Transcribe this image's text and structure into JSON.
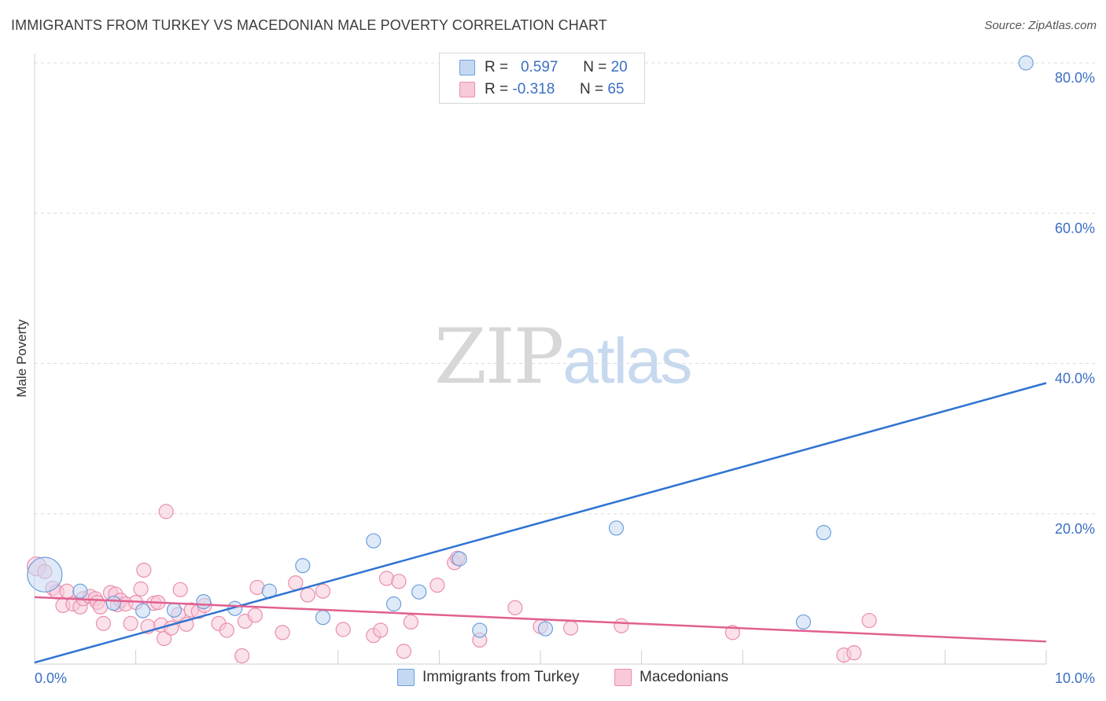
{
  "title": "IMMIGRANTS FROM TURKEY VS MACEDONIAN MALE POVERTY CORRELATION CHART",
  "source": "Source: ZipAtlas.com",
  "watermark": {
    "zip": "ZIP",
    "atlas": "atlas"
  },
  "legend": {
    "r_label": "R =",
    "n_label": "N =",
    "rows": [
      {
        "r": "0.597",
        "n": "20"
      },
      {
        "r": "-0.318",
        "n": "65"
      }
    ]
  },
  "bottom_legend": [
    "Immigrants from Turkey",
    "Macedonians"
  ],
  "colors": {
    "blue_fill": "#c5d8f2",
    "blue_stroke": "#6b9fdc",
    "blue_line": "#2f73d1",
    "pink_fill": "#f8c9d8",
    "pink_stroke": "#e98fae",
    "pink_line": "#e06090",
    "tick_blue": "#3b6fc4",
    "grid": "#dcdcdc"
  },
  "chart_data": {
    "type": "scatter",
    "title": "IMMIGRANTS FROM TURKEY VS MACEDONIAN MALE POVERTY CORRELATION CHART",
    "xlabel": "",
    "ylabel": "Male Poverty",
    "xlim": [
      0,
      10
    ],
    "ylim": [
      0,
      80
    ],
    "x_tick_labels": [
      "0.0%",
      "10.0%"
    ],
    "y_ticks": [
      20,
      40,
      60,
      80
    ],
    "y_tick_labels": [
      "20.0%",
      "40.0%",
      "60.0%",
      "80.0%"
    ],
    "grid": true,
    "series": [
      {
        "name": "Immigrants from Turkey",
        "R": 0.597,
        "N": 20,
        "trend": [
          [
            0,
            0.2
          ],
          [
            10,
            37.4
          ]
        ],
        "points": [
          [
            0.1,
            11.9,
            22
          ],
          [
            0.45,
            9.7,
            9
          ],
          [
            0.78,
            8.1,
            9
          ],
          [
            1.07,
            7.1,
            9
          ],
          [
            1.38,
            7.2,
            9
          ],
          [
            1.67,
            8.3,
            9
          ],
          [
            1.98,
            7.4,
            9
          ],
          [
            2.32,
            9.7,
            9
          ],
          [
            2.65,
            13.1,
            9
          ],
          [
            2.85,
            6.2,
            9
          ],
          [
            3.35,
            16.4,
            9
          ],
          [
            3.55,
            8.0,
            9
          ],
          [
            3.8,
            9.6,
            9
          ],
          [
            4.2,
            14.0,
            9
          ],
          [
            4.4,
            4.5,
            9
          ],
          [
            5.05,
            4.7,
            9
          ],
          [
            5.75,
            18.1,
            9
          ],
          [
            7.6,
            5.6,
            9
          ],
          [
            7.8,
            17.5,
            9
          ],
          [
            9.8,
            80.0,
            9
          ]
        ]
      },
      {
        "name": "Macedonians",
        "R": -0.318,
        "N": 65,
        "trend": [
          [
            0,
            8.9
          ],
          [
            10,
            3.0
          ]
        ],
        "points": [
          [
            0.02,
            13.0,
            12
          ],
          [
            0.1,
            12.3,
            9
          ],
          [
            0.18,
            10.1,
            9
          ],
          [
            0.22,
            9.6,
            9
          ],
          [
            0.28,
            7.8,
            9
          ],
          [
            0.32,
            9.7,
            9
          ],
          [
            0.38,
            8.0,
            9
          ],
          [
            0.45,
            7.6,
            9
          ],
          [
            0.48,
            8.7,
            9
          ],
          [
            0.55,
            9.0,
            9
          ],
          [
            0.6,
            8.7,
            9
          ],
          [
            0.62,
            8.2,
            9
          ],
          [
            0.65,
            7.6,
            9
          ],
          [
            0.68,
            5.4,
            9
          ],
          [
            0.75,
            9.5,
            9
          ],
          [
            0.8,
            9.3,
            9
          ],
          [
            0.82,
            7.9,
            9
          ],
          [
            0.85,
            8.5,
            9
          ],
          [
            0.9,
            8.0,
            9
          ],
          [
            0.95,
            5.4,
            9
          ],
          [
            1.0,
            8.2,
            9
          ],
          [
            1.05,
            10.0,
            9
          ],
          [
            1.08,
            12.5,
            9
          ],
          [
            1.12,
            5.0,
            9
          ],
          [
            1.18,
            8.1,
            9
          ],
          [
            1.22,
            8.2,
            9
          ],
          [
            1.25,
            5.2,
            9
          ],
          [
            1.28,
            3.4,
            9
          ],
          [
            1.3,
            20.3,
            9
          ],
          [
            1.35,
            4.8,
            9
          ],
          [
            1.42,
            6.6,
            9
          ],
          [
            1.44,
            9.9,
            9
          ],
          [
            1.5,
            5.3,
            9
          ],
          [
            1.55,
            7.2,
            9
          ],
          [
            1.62,
            7.0,
            9
          ],
          [
            1.68,
            7.8,
            9
          ],
          [
            1.82,
            5.4,
            9
          ],
          [
            1.9,
            4.5,
            9
          ],
          [
            2.05,
            1.1,
            9
          ],
          [
            2.08,
            5.7,
            9
          ],
          [
            2.18,
            6.5,
            9
          ],
          [
            2.2,
            10.2,
            9
          ],
          [
            2.45,
            4.2,
            9
          ],
          [
            2.58,
            10.8,
            9
          ],
          [
            2.7,
            9.2,
            9
          ],
          [
            2.85,
            9.7,
            9
          ],
          [
            3.05,
            4.6,
            9
          ],
          [
            3.35,
            3.8,
            9
          ],
          [
            3.42,
            4.5,
            9
          ],
          [
            3.48,
            11.4,
            9
          ],
          [
            3.6,
            11.0,
            9
          ],
          [
            3.65,
            1.7,
            9
          ],
          [
            3.72,
            5.6,
            9
          ],
          [
            3.98,
            10.5,
            9
          ],
          [
            4.15,
            13.5,
            9
          ],
          [
            4.18,
            14.1,
            9
          ],
          [
            4.4,
            3.2,
            9
          ],
          [
            4.75,
            7.5,
            9
          ],
          [
            5.0,
            5.0,
            9
          ],
          [
            5.3,
            4.8,
            9
          ],
          [
            5.8,
            5.1,
            9
          ],
          [
            6.9,
            4.2,
            9
          ],
          [
            8.0,
            1.2,
            9
          ],
          [
            8.1,
            1.5,
            9
          ],
          [
            8.25,
            5.8,
            9
          ]
        ]
      }
    ]
  }
}
